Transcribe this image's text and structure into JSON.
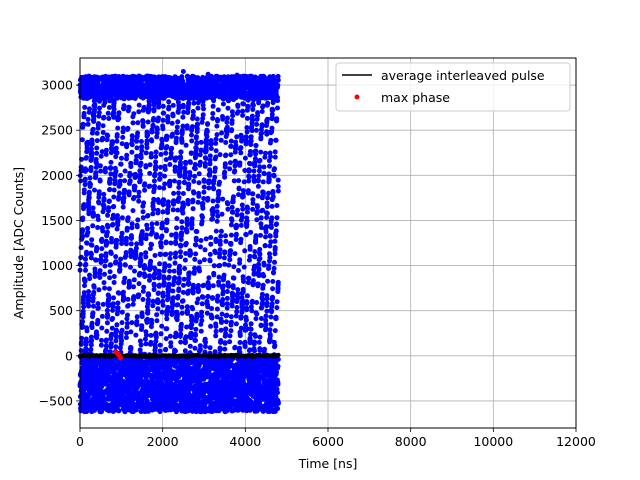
{
  "chart_data": {
    "type": "scatter",
    "title": "",
    "xlabel": "Time [ns]",
    "ylabel": "Amplitude [ADC Counts]",
    "xlim": [
      0,
      12000
    ],
    "ylim": [
      -800,
      3300
    ],
    "xticks": [
      0,
      2000,
      4000,
      6000,
      8000,
      10000,
      12000
    ],
    "yticks": [
      -500,
      0,
      500,
      1000,
      1500,
      2000,
      2500,
      3000
    ],
    "grid": true,
    "legend_position": "top-right",
    "series": [
      {
        "name": "",
        "kind": "scatter",
        "color": "#0000ff",
        "description_points": {
          "x_range": [
            0,
            4800
          ],
          "y_range": [
            -620,
            3150
          ],
          "baseline_band": [
            -620,
            0
          ],
          "upper_band": [
            2850,
            3100
          ]
        }
      },
      {
        "name": "average interleaved pulse",
        "kind": "line",
        "color": "#000000",
        "x_range": [
          0,
          4800
        ],
        "y_value": 0
      },
      {
        "name": "max phase",
        "kind": "scatter",
        "color": "#ff0000",
        "points": [
          [
            880,
            40
          ],
          [
            900,
            30
          ],
          [
            920,
            20
          ],
          [
            940,
            10
          ],
          [
            960,
            -5
          ],
          [
            980,
            -20
          ]
        ]
      }
    ],
    "legend": [
      {
        "label": "average interleaved pulse",
        "marker": "line",
        "color": "#000000"
      },
      {
        "label": "max phase",
        "marker": "dot",
        "color": "#ff0000"
      }
    ]
  }
}
